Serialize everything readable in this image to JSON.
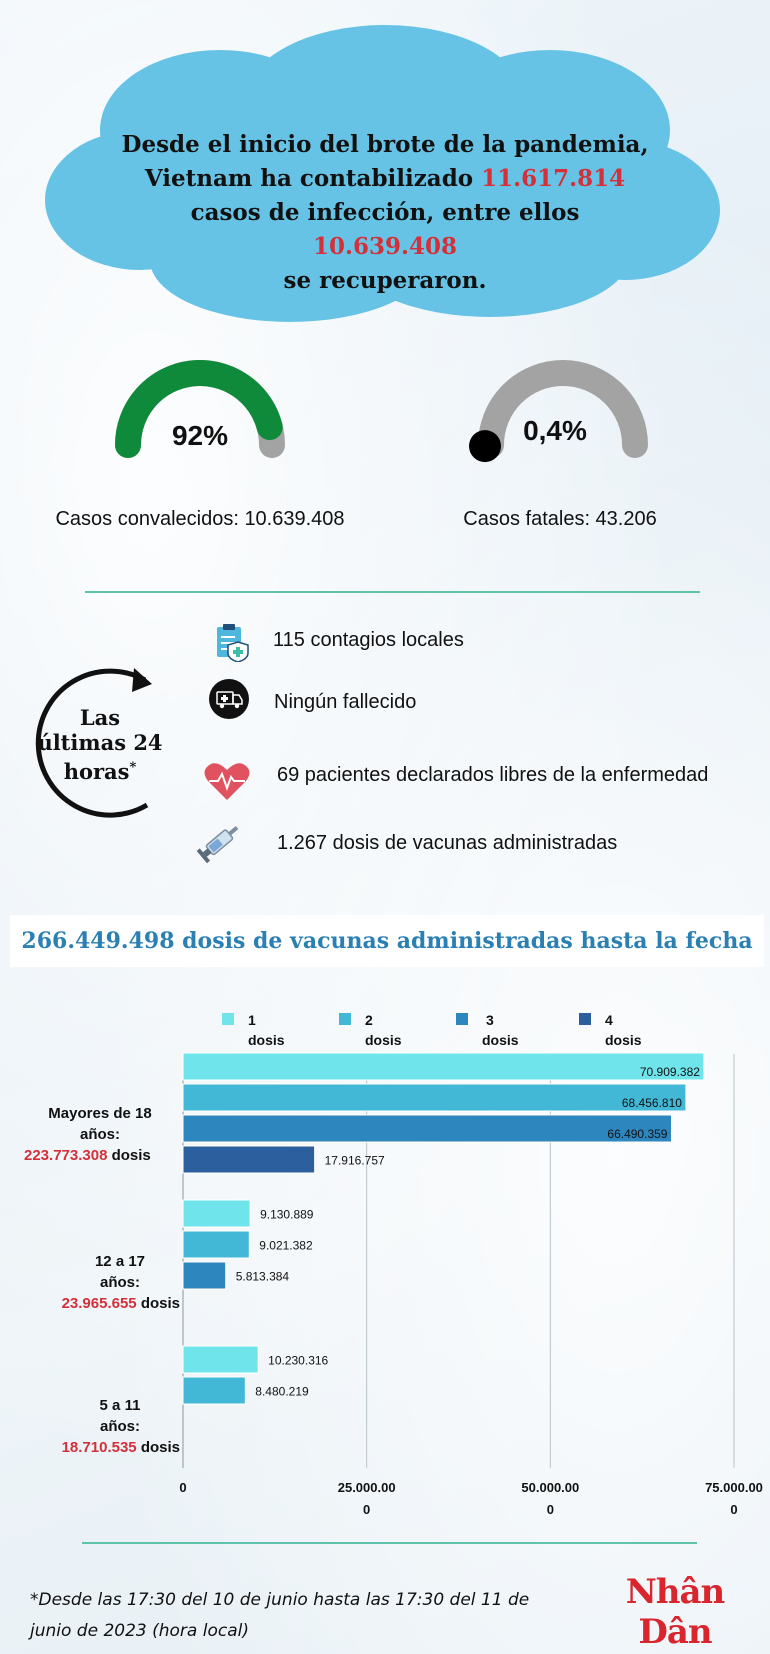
{
  "headline": {
    "line1": "Desde el inicio del brote de la pandemia,",
    "line2_pre": "Vietnam ha contabilizado ",
    "total_cases": "11.617.814",
    "line3_pre": "casos de infección, entre ellos ",
    "recovered": "10.639.408",
    "line4": "se recuperaron."
  },
  "gauges": {
    "recovered": {
      "value_label": "92%",
      "fraction": 0.92,
      "label": "Casos convalecidos: 10.639.408",
      "color": "#0e8a3a"
    },
    "fatal": {
      "value_label": "0,4%",
      "fraction": 0.004,
      "label": "Casos fatales: 43.206",
      "color": "#000000"
    },
    "track_color": "#a3a3a3"
  },
  "last24": {
    "title_line1": "Las",
    "title_line2": "últimas 24",
    "title_line3": "horas",
    "title_mark": "*",
    "items": [
      {
        "icon": "clipboard-medical-icon",
        "text": "115 contagios locales"
      },
      {
        "icon": "ambulance-icon",
        "text": "Ningún fallecido"
      },
      {
        "icon": "heart-pulse-icon",
        "text": "69 pacientes declarados libres de la enfermedad"
      },
      {
        "icon": "syringe-icon",
        "text": "1.267 dosis de vacunas administradas"
      }
    ]
  },
  "banner": {
    "text": "266.449.498 dosis de vacunas administradas hasta la fecha"
  },
  "chart_data": {
    "type": "bar",
    "orientation": "horizontal",
    "legend": [
      {
        "line1": "1",
        "line2": "dosis",
        "color": "#6fe4ea"
      },
      {
        "line1": "2",
        "line2": "dosis",
        "color": "#42b7d6"
      },
      {
        "line1": "3",
        "line2": "dosis",
        "color": "#2e86bf"
      },
      {
        "line1": "4",
        "line2": "dosis",
        "color": "#2c5f9e"
      }
    ],
    "categories": [
      {
        "line1": "Mayores de 18",
        "line2": "años:",
        "total": "223.773.308",
        "unit": "dosis",
        "values": [
          70909382,
          68456810,
          66490359,
          17916757
        ],
        "labels": [
          "70.909.382",
          "68.456.810",
          "66.490.359",
          "17.916.757"
        ]
      },
      {
        "line1": "12 a 17",
        "line2": "años:",
        "total": "23.965.655",
        "unit": "dosis",
        "values": [
          9130889,
          9021382,
          5813384
        ],
        "labels": [
          "9.130.889",
          "9.021.382",
          "5.813.384"
        ]
      },
      {
        "line1": "5 a 11",
        "line2": "años:",
        "total": "18.710.535",
        "unit": "dosis",
        "values": [
          10230316,
          8480219
        ],
        "labels": [
          "10.230.316",
          "8.480.219"
        ]
      }
    ],
    "xlim": [
      0,
      75000000
    ],
    "x_ticks": [
      {
        "value": 0,
        "line1": "0",
        "line2": ""
      },
      {
        "value": 25000000,
        "line1": "25.000.00",
        "line2": "0"
      },
      {
        "value": 50000000,
        "line1": "50.000.00",
        "line2": "0"
      },
      {
        "value": 75000000,
        "line1": "75.000.00",
        "line2": "0"
      }
    ],
    "grid": true
  },
  "footnote": "*Desde las 17:30 del 10 de junio hasta las 17:30 del 11 de junio de 2023 (hora local)",
  "logo": "Nhân Dân"
}
